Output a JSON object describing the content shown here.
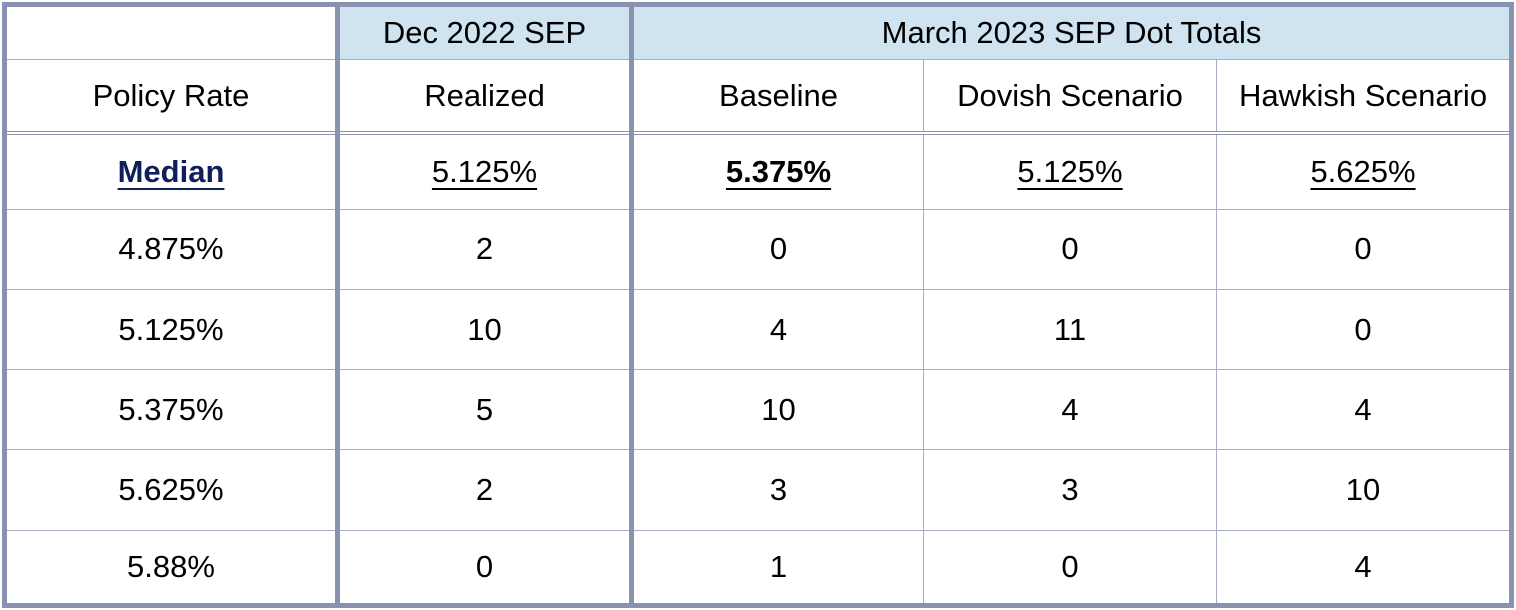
{
  "header": {
    "group_dec": "Dec 2022 SEP",
    "group_march": "March 2023 SEP Dot Totals",
    "columns": [
      "Policy Rate",
      "Realized",
      "Baseline",
      "Dovish Scenario",
      "Hawkish Scenario"
    ]
  },
  "median": {
    "label": "Median",
    "realized": "5.125%",
    "baseline": "5.375%",
    "dovish": "5.125%",
    "hawkish": "5.625%"
  },
  "rows": [
    {
      "rate": "4.875%",
      "realized": "2",
      "baseline": "0",
      "dovish": "0",
      "hawkish": "0"
    },
    {
      "rate": "5.125%",
      "realized": "10",
      "baseline": "4",
      "dovish": "11",
      "hawkish": "0"
    },
    {
      "rate": "5.375%",
      "realized": "5",
      "baseline": "10",
      "dovish": "4",
      "hawkish": "4"
    },
    {
      "rate": "5.625%",
      "realized": "2",
      "baseline": "3",
      "dovish": "3",
      "hawkish": "10"
    },
    {
      "rate": "5.88%",
      "realized": "0",
      "baseline": "1",
      "dovish": "0",
      "hawkish": "4"
    }
  ],
  "colors": {
    "header_fill": "#cfe3f0",
    "header_text": "#0e1f5b",
    "border": "#8993b0"
  }
}
